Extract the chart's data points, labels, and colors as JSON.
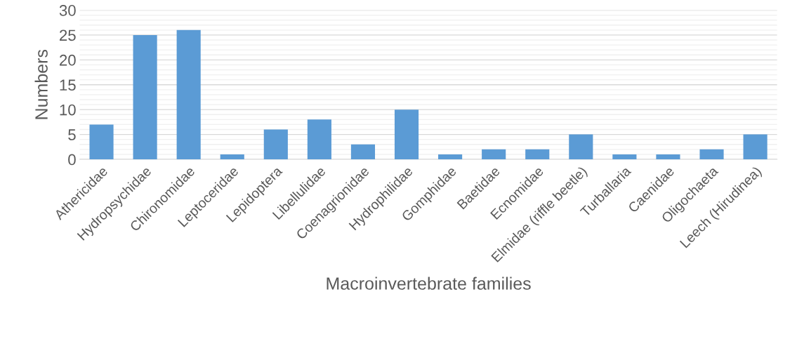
{
  "chart_data": {
    "type": "bar",
    "xlabel": "Macroinvertebrate families",
    "ylabel": "Numbers",
    "categories": [
      "Athericidae",
      "Hydropsychidae",
      "Chironomidae",
      "Leptoceridae",
      "Lepidoptera",
      "Libellulidae",
      "Coenagrionidae",
      "Hydrophilidae",
      "Gomphidae",
      "Baetidae",
      "Ecnomidae",
      "Elmidae (riffle beetle)",
      "Turballaria",
      "Caenidae",
      "Oligochaeta",
      "Leech (Hirudinea)"
    ],
    "values": [
      7,
      25,
      26,
      1,
      6,
      8,
      3,
      10,
      1,
      2,
      2,
      5,
      1,
      1,
      2,
      5
    ],
    "color": "#5b9bd5",
    "ylim": [
      0,
      30
    ],
    "yticks": [
      0,
      5,
      10,
      15,
      20,
      25,
      30
    ],
    "grid": "y"
  }
}
